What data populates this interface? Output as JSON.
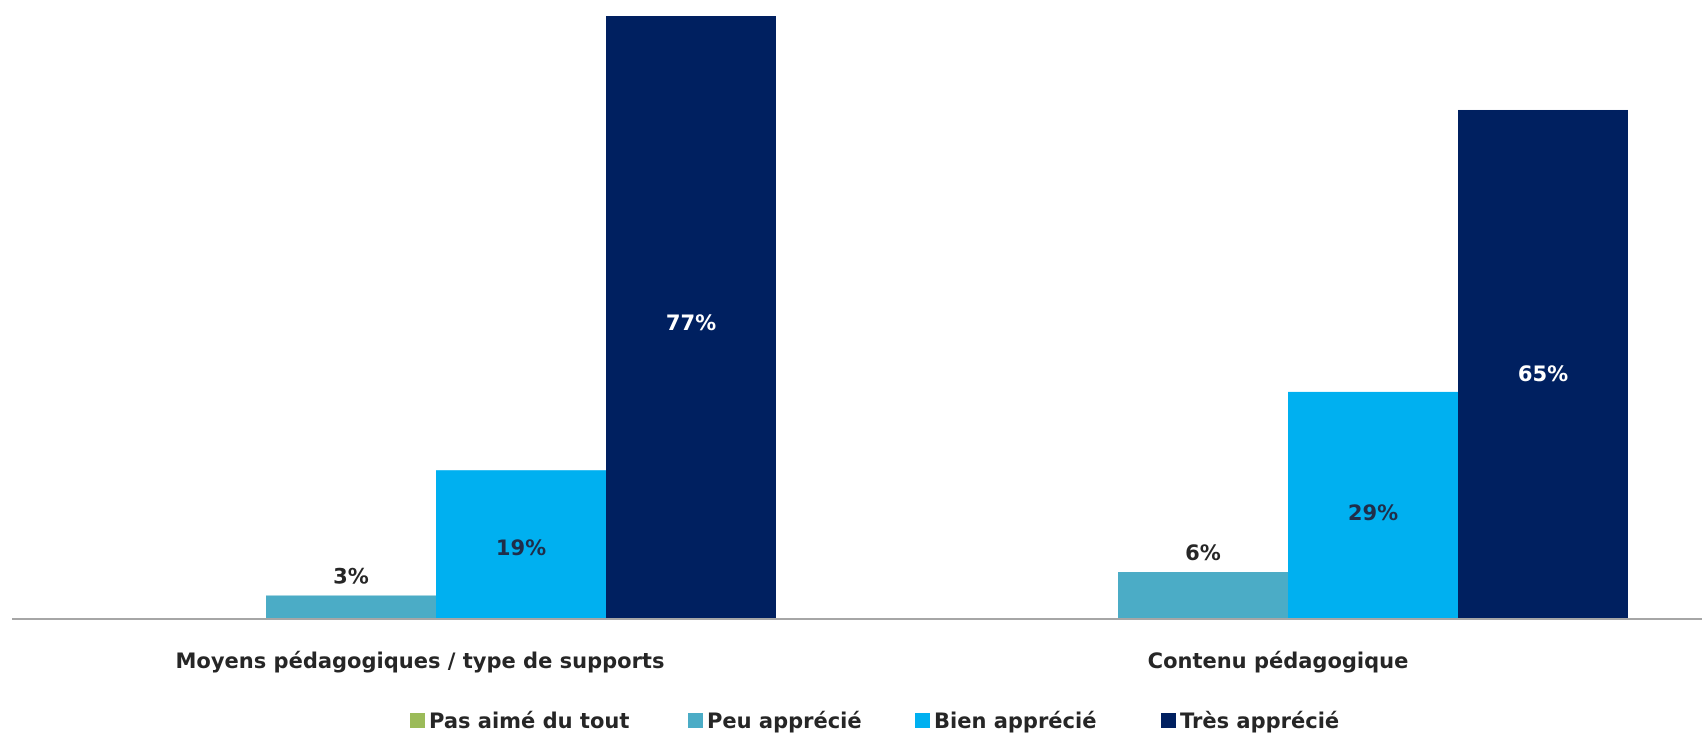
{
  "chart_data": {
    "type": "bar",
    "categories": [
      "Moyens pédagogiques / type de supports",
      "Contenu pédagogique"
    ],
    "series": [
      {
        "name": "Pas aimé du tout",
        "values": [
          0,
          0
        ],
        "labels": [
          "",
          ""
        ],
        "color": "#9BBB59",
        "label_color": "#262626"
      },
      {
        "name": "Peu apprécié",
        "values": [
          3,
          6
        ],
        "labels": [
          "3%",
          "6%"
        ],
        "color": "#4BACC6",
        "label_color": "#262626"
      },
      {
        "name": "Bien apprécié",
        "values": [
          19,
          29
        ],
        "labels": [
          "19%",
          "29%"
        ],
        "color": "#00B0F0",
        "label_color": "#1F2E4A"
      },
      {
        "name": "Très apprécié",
        "values": [
          77,
          65
        ],
        "labels": [
          "77%",
          "65%"
        ],
        "color": "#002060",
        "label_color": "#FFFFFF"
      }
    ],
    "title": "",
    "xlabel": "",
    "ylabel": "",
    "ylim": [
      0,
      77
    ],
    "grid": false,
    "legend_position": "bottom",
    "axis_color": "#A6A6A6"
  }
}
